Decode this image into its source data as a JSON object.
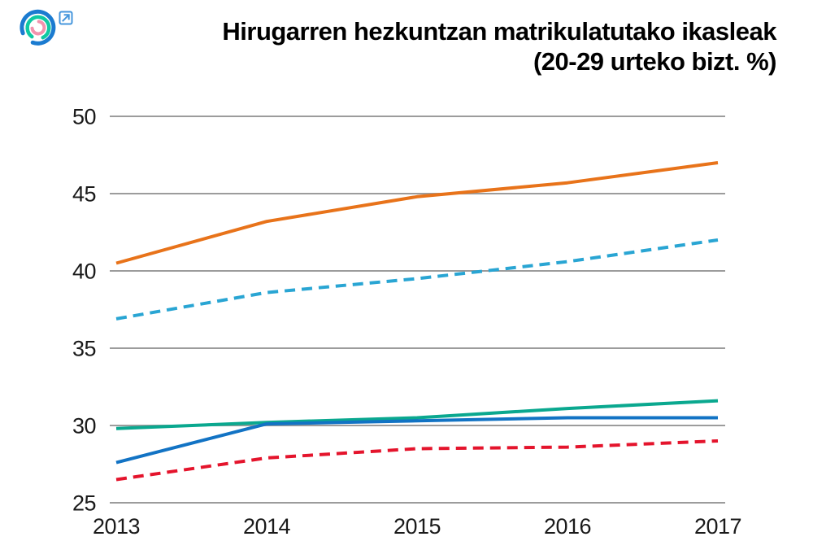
{
  "header": {
    "title_line1": "Hirugarren hezkuntzan matrikulatutako ikasleak",
    "title_line2": "(20-29 urteko bizt. %)",
    "logo_icon": "concentric-arcs-logo",
    "external_link_icon": "external-link",
    "logo_colors": {
      "outer_arc": "#1B7BD0",
      "middle_arc": "#0EC9A2",
      "inner_arc": "#F293AE",
      "link_blue": "#4596DC"
    }
  },
  "chart_data": {
    "type": "line",
    "title": "Hirugarren hezkuntzan matrikulatutako ikasleak (20-29 urteko bizt. %)",
    "x": [
      "2013",
      "2014",
      "2015",
      "2016",
      "2017"
    ],
    "ylim": [
      25,
      50
    ],
    "yticks": [
      25,
      30,
      35,
      40,
      45,
      50
    ],
    "grid": "horizontal-only",
    "grid_color": "#9c9c9c",
    "legend_position": "none",
    "axis_label_color": "#1a1a1a",
    "series": [
      {
        "name": "series-orange-solid",
        "color": "#E8731A",
        "style": "solid",
        "values": [
          40.5,
          43.2,
          44.8,
          45.7,
          47.0
        ]
      },
      {
        "name": "series-cyan-dashed",
        "color": "#29A5D3",
        "style": "dashed",
        "values": [
          36.9,
          38.6,
          39.5,
          40.6,
          42.0
        ]
      },
      {
        "name": "series-teal-solid",
        "color": "#0AA88F",
        "style": "solid",
        "values": [
          29.8,
          30.2,
          30.5,
          31.1,
          31.6
        ]
      },
      {
        "name": "series-blue-solid",
        "color": "#1273C4",
        "style": "solid",
        "values": [
          27.6,
          30.1,
          30.3,
          30.5,
          30.5
        ]
      },
      {
        "name": "series-red-dashed",
        "color": "#E4142C",
        "style": "dashed",
        "values": [
          26.5,
          27.9,
          28.5,
          28.6,
          29.0
        ]
      }
    ]
  }
}
